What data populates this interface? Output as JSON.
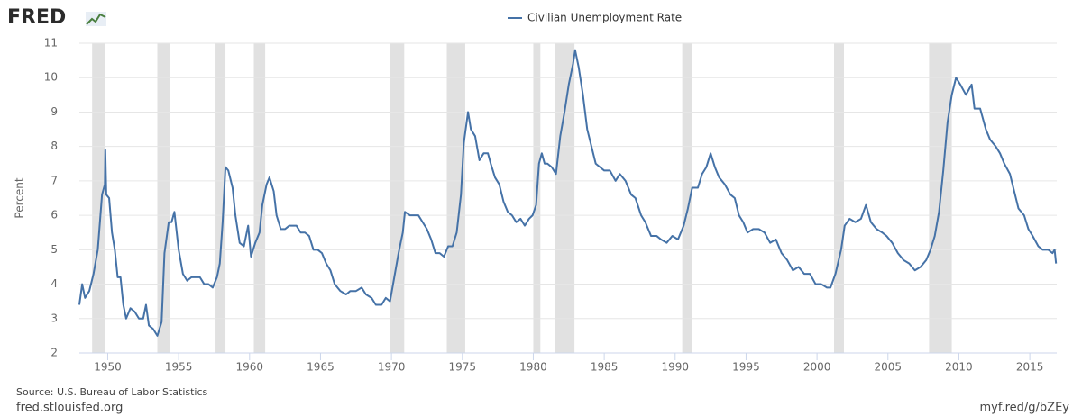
{
  "header": {
    "logo": "FRED"
  },
  "chart_data": {
    "type": "line",
    "ylabel": "Percent",
    "xlim": [
      1948,
      2016.9
    ],
    "ylim": [
      2,
      11
    ],
    "xticks": [
      1950,
      1955,
      1960,
      1965,
      1970,
      1975,
      1980,
      1985,
      1990,
      1995,
      2000,
      2005,
      2010,
      2015
    ],
    "yticks": [
      2,
      3,
      4,
      5,
      6,
      7,
      8,
      9,
      10,
      11
    ],
    "grid": true,
    "shaded_ranges": [
      [
        1948.9,
        1949.8
      ],
      [
        1953.5,
        1954.4
      ],
      [
        1957.6,
        1958.3
      ],
      [
        1960.3,
        1961.1
      ],
      [
        1969.9,
        1970.9
      ],
      [
        1973.9,
        1975.2
      ],
      [
        1980.0,
        1980.5
      ],
      [
        1981.5,
        1982.9
      ],
      [
        1990.5,
        1991.2
      ],
      [
        2001.2,
        2001.9
      ],
      [
        2007.9,
        2009.5
      ]
    ],
    "series": [
      {
        "name": "Civilian Unemployment Rate",
        "color": "#4572a7",
        "x": [
          1948.0,
          1948.2,
          1948.4,
          1948.7,
          1949.0,
          1949.3,
          1949.6,
          1949.8,
          1949.83,
          1949.9,
          1950.1,
          1950.3,
          1950.5,
          1950.7,
          1950.9,
          1951.1,
          1951.3,
          1951.6,
          1951.9,
          1952.2,
          1952.5,
          1952.7,
          1952.9,
          1953.2,
          1953.5,
          1953.8,
          1954.0,
          1954.3,
          1954.5,
          1954.7,
          1955.0,
          1955.3,
          1955.6,
          1955.9,
          1956.2,
          1956.5,
          1956.8,
          1957.1,
          1957.4,
          1957.7,
          1957.9,
          1958.1,
          1958.3,
          1958.5,
          1958.8,
          1959.0,
          1959.3,
          1959.6,
          1959.9,
          1960.1,
          1960.4,
          1960.7,
          1960.9,
          1961.2,
          1961.4,
          1961.7,
          1961.9,
          1962.2,
          1962.5,
          1962.8,
          1963.0,
          1963.3,
          1963.6,
          1963.9,
          1964.2,
          1964.5,
          1964.8,
          1965.1,
          1965.4,
          1965.7,
          1966.0,
          1966.4,
          1966.8,
          1967.1,
          1967.5,
          1967.9,
          1968.2,
          1968.6,
          1968.9,
          1969.3,
          1969.6,
          1969.9,
          1970.2,
          1970.5,
          1970.8,
          1970.95,
          1971.3,
          1971.6,
          1971.9,
          1972.2,
          1972.5,
          1972.8,
          1973.1,
          1973.4,
          1973.7,
          1974.0,
          1974.3,
          1974.6,
          1974.9,
          1975.1,
          1975.4,
          1975.6,
          1975.9,
          1976.2,
          1976.5,
          1976.8,
          1977.0,
          1977.3,
          1977.6,
          1977.9,
          1978.2,
          1978.5,
          1978.8,
          1979.1,
          1979.4,
          1979.7,
          1979.95,
          1980.2,
          1980.4,
          1980.6,
          1980.8,
          1981.0,
          1981.3,
          1981.6,
          1981.9,
          1982.2,
          1982.5,
          1982.8,
          1982.95,
          1983.2,
          1983.5,
          1983.8,
          1984.1,
          1984.4,
          1984.7,
          1985.0,
          1985.4,
          1985.8,
          1986.1,
          1986.5,
          1986.9,
          1987.2,
          1987.6,
          1987.9,
          1988.3,
          1988.7,
          1989.0,
          1989.4,
          1989.8,
          1990.2,
          1990.6,
          1990.9,
          1991.2,
          1991.6,
          1991.9,
          1992.2,
          1992.5,
          1992.8,
          1993.1,
          1993.5,
          1993.9,
          1994.2,
          1994.5,
          1994.8,
          1995.1,
          1995.5,
          1995.9,
          1996.3,
          1996.7,
          1997.1,
          1997.5,
          1997.9,
          1998.3,
          1998.7,
          1999.1,
          1999.5,
          1999.9,
          2000.3,
          2000.7,
          2000.95,
          2001.3,
          2001.7,
          2001.95,
          2002.3,
          2002.7,
          2003.1,
          2003.45,
          2003.8,
          2004.2,
          2004.6,
          2004.9,
          2005.3,
          2005.7,
          2006.1,
          2006.5,
          2006.9,
          2007.3,
          2007.7,
          2008.0,
          2008.3,
          2008.6,
          2008.9,
          2009.2,
          2009.5,
          2009.8,
          2010.1,
          2010.5,
          2010.9,
          2011.1,
          2011.5,
          2011.9,
          2012.2,
          2012.6,
          2012.9,
          2013.2,
          2013.6,
          2013.9,
          2014.2,
          2014.6,
          2014.9,
          2015.2,
          2015.6,
          2015.9,
          2016.3,
          2016.6,
          2016.75,
          2016.85
        ],
        "values": [
          3.4,
          4.0,
          3.6,
          3.8,
          4.3,
          5.0,
          6.6,
          6.9,
          7.9,
          6.6,
          6.5,
          5.5,
          5.0,
          4.2,
          4.2,
          3.4,
          3.0,
          3.3,
          3.2,
          3.0,
          3.0,
          3.4,
          2.8,
          2.7,
          2.5,
          2.9,
          4.9,
          5.8,
          5.8,
          6.1,
          5.0,
          4.3,
          4.1,
          4.2,
          4.2,
          4.2,
          4.0,
          4.0,
          3.9,
          4.2,
          4.6,
          5.8,
          7.4,
          7.3,
          6.8,
          6.0,
          5.2,
          5.1,
          5.7,
          4.8,
          5.2,
          5.5,
          6.3,
          6.9,
          7.1,
          6.7,
          6.0,
          5.6,
          5.6,
          5.7,
          5.7,
          5.7,
          5.5,
          5.5,
          5.4,
          5.0,
          5.0,
          4.9,
          4.6,
          4.4,
          4.0,
          3.8,
          3.7,
          3.8,
          3.8,
          3.9,
          3.7,
          3.6,
          3.4,
          3.4,
          3.6,
          3.5,
          4.2,
          4.9,
          5.5,
          6.1,
          6.0,
          6.0,
          6.0,
          5.8,
          5.6,
          5.3,
          4.9,
          4.9,
          4.8,
          5.1,
          5.1,
          5.5,
          6.6,
          8.1,
          9.0,
          8.5,
          8.3,
          7.6,
          7.8,
          7.8,
          7.5,
          7.1,
          6.9,
          6.4,
          6.1,
          6.0,
          5.8,
          5.9,
          5.7,
          5.9,
          6.0,
          6.3,
          7.5,
          7.8,
          7.5,
          7.5,
          7.4,
          7.2,
          8.3,
          9.0,
          9.8,
          10.4,
          10.8,
          10.3,
          9.5,
          8.5,
          8.0,
          7.5,
          7.4,
          7.3,
          7.3,
          7.0,
          7.2,
          7.0,
          6.6,
          6.5,
          6.0,
          5.8,
          5.4,
          5.4,
          5.3,
          5.2,
          5.4,
          5.3,
          5.7,
          6.2,
          6.8,
          6.8,
          7.2,
          7.4,
          7.8,
          7.4,
          7.1,
          6.9,
          6.6,
          6.5,
          6.0,
          5.8,
          5.5,
          5.6,
          5.6,
          5.5,
          5.2,
          5.3,
          4.9,
          4.7,
          4.4,
          4.5,
          4.3,
          4.3,
          4.0,
          4.0,
          3.9,
          3.9,
          4.3,
          5.0,
          5.7,
          5.9,
          5.8,
          5.9,
          6.3,
          5.8,
          5.6,
          5.5,
          5.4,
          5.2,
          4.9,
          4.7,
          4.6,
          4.4,
          4.5,
          4.7,
          5.0,
          5.4,
          6.1,
          7.3,
          8.7,
          9.5,
          10.0,
          9.8,
          9.5,
          9.8,
          9.1,
          9.1,
          8.5,
          8.2,
          8.0,
          7.8,
          7.5,
          7.2,
          6.7,
          6.2,
          6.0,
          5.6,
          5.4,
          5.1,
          5.0,
          5.0,
          4.9,
          5.0,
          4.6
        ]
      }
    ]
  },
  "footer": {
    "source": "Source: U.S. Bureau of Labor Statistics",
    "site": "fred.stlouisfed.org",
    "link": "myf.red/g/bZEy"
  }
}
